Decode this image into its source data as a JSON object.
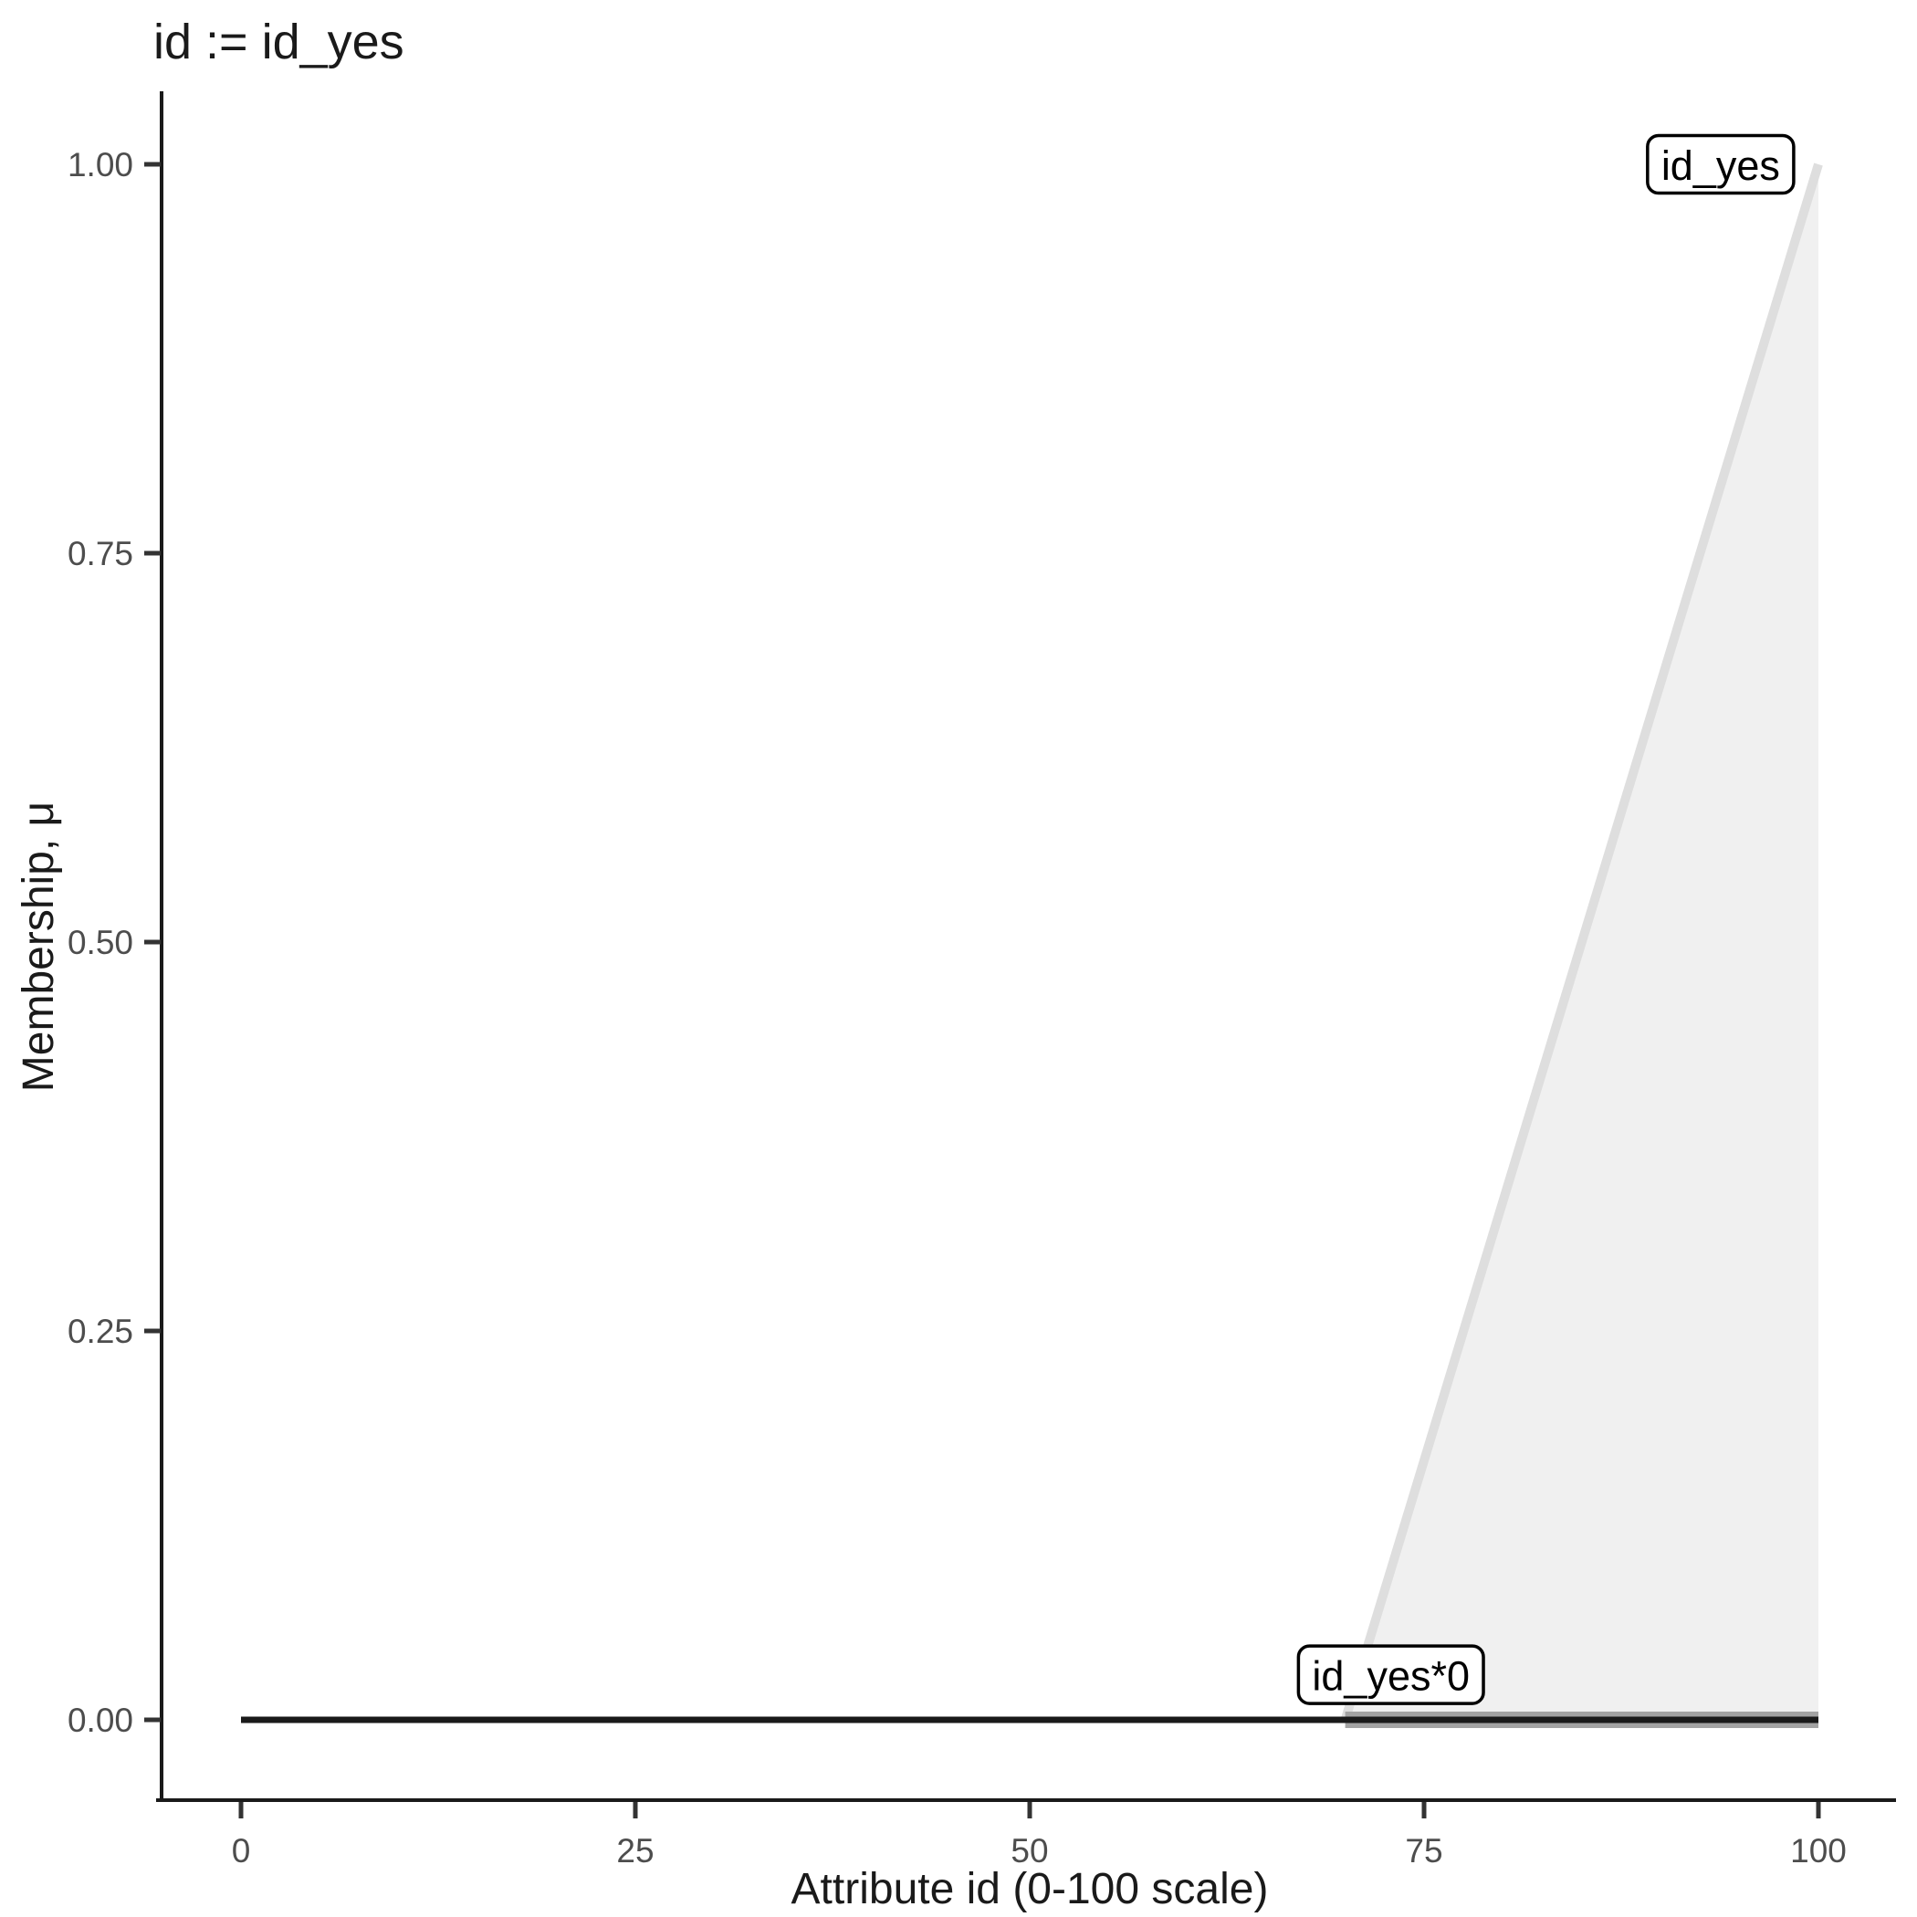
{
  "chart_data": {
    "type": "area",
    "title": "id := id_yes",
    "xlabel": "Attribute id (0-100 scale)",
    "ylabel": "Membership, μ",
    "xlim": [
      0,
      100
    ],
    "ylim": [
      0,
      1
    ],
    "grid": "off",
    "legend": "none",
    "x_axis": {
      "label": "Attribute id (0-100 scale)",
      "ticks": [
        {
          "v": 0,
          "label": "0"
        },
        {
          "v": 25,
          "label": "25"
        },
        {
          "v": 50,
          "label": "50"
        },
        {
          "v": 75,
          "label": "75"
        },
        {
          "v": 100,
          "label": "100"
        }
      ]
    },
    "y_axis": {
      "label": "Membership, μ",
      "ticks": [
        {
          "v": 0.0,
          "label": "0.00"
        },
        {
          "v": 0.25,
          "label": "0.25"
        },
        {
          "v": 0.5,
          "label": "0.50"
        },
        {
          "v": 0.75,
          "label": "0.75"
        },
        {
          "v": 1.0,
          "label": "1.00"
        }
      ]
    },
    "series": [
      {
        "name": "id_yes-membership-area",
        "fill_polygon": [
          [
            70,
            0
          ],
          [
            100,
            1
          ],
          [
            100,
            0
          ]
        ],
        "fill": "#F0F0F0",
        "points": [
          [
            70,
            0
          ],
          [
            100,
            1
          ]
        ],
        "stroke": "#DEDEDE",
        "width": 10
      },
      {
        "name": "id_yes-times-0-support",
        "points": [
          [
            70,
            0
          ],
          [
            100,
            0
          ]
        ],
        "stroke": "#A3A3A3",
        "width": 18
      },
      {
        "name": "id_yes-times-0-line",
        "points": [
          [
            0,
            0
          ],
          [
            100,
            0
          ]
        ],
        "stroke": "#1A1A1A",
        "width": 7
      }
    ],
    "annotations": [
      {
        "text": "id_yes",
        "x": 93.8,
        "y": 1.0
      },
      {
        "text": "id_yes*0",
        "x": 72.9,
        "y": 0.029
      }
    ]
  },
  "colors": {
    "background": "#FFFFFF",
    "axis_line": "#1A1A1A",
    "tick_mark": "#333333",
    "tick_label": "#4D4D4D",
    "title_text": "#1A1A1A",
    "area_fill": "#F0F0F0",
    "membership_line": "#DEDEDE",
    "support_line": "#A3A3A3",
    "zero_line": "#1A1A1A",
    "annotation_border": "#000000",
    "annotation_fill": "#FFFFFF"
  }
}
